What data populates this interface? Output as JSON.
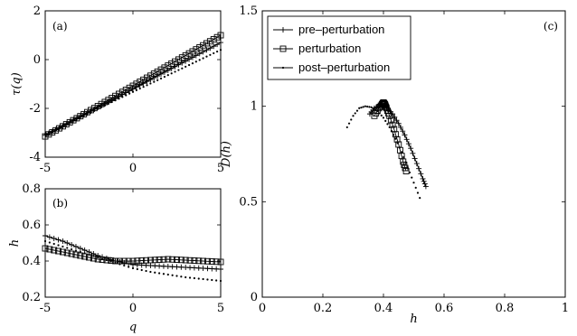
{
  "chart_data": [
    {
      "id": "a",
      "type": "line",
      "panel_label": "(a)",
      "xlim": [
        -5,
        5
      ],
      "ylim": [
        -4,
        2
      ],
      "xticks": [
        -5,
        0,
        5
      ],
      "yticks": [
        -4,
        -2,
        0,
        2
      ],
      "ylabel": "τ(q)",
      "grid": false,
      "series": [
        {
          "style": "plus",
          "x": [
            -5,
            5
          ],
          "y": [
            -3.1,
            0.7
          ]
        },
        {
          "style": "square",
          "x": [
            -5,
            5
          ],
          "y": [
            -3.15,
            1.0
          ]
        },
        {
          "style": "dot",
          "x": [
            -5,
            5
          ],
          "y": [
            -3.05,
            0.4
          ]
        }
      ]
    },
    {
      "id": "b",
      "type": "line",
      "panel_label": "(b)",
      "xlim": [
        -5,
        5
      ],
      "ylim": [
        0.2,
        0.8
      ],
      "xticks": [
        -5,
        0,
        5
      ],
      "yticks": [
        0.2,
        0.4,
        0.6,
        0.8
      ],
      "xlabel": "q",
      "ylabel": "h",
      "grid": false,
      "series": [
        {
          "style": "plus",
          "x": [
            -5,
            -4,
            -3,
            -2,
            -1,
            0,
            1,
            2,
            3,
            4,
            5
          ],
          "y": [
            0.54,
            0.51,
            0.47,
            0.43,
            0.4,
            0.38,
            0.375,
            0.37,
            0.365,
            0.36,
            0.355
          ]
        },
        {
          "style": "square",
          "x": [
            -5,
            -4,
            -3,
            -2,
            -1,
            0,
            1,
            2,
            3,
            4,
            5
          ],
          "y": [
            0.47,
            0.45,
            0.43,
            0.41,
            0.4,
            0.4,
            0.405,
            0.41,
            0.405,
            0.4,
            0.395
          ]
        },
        {
          "style": "dot",
          "x": [
            -5,
            -4,
            -3,
            -2,
            -1,
            0,
            1,
            2,
            3,
            4,
            5
          ],
          "y": [
            0.51,
            0.48,
            0.45,
            0.42,
            0.39,
            0.36,
            0.34,
            0.325,
            0.31,
            0.3,
            0.29
          ]
        }
      ]
    },
    {
      "id": "c",
      "type": "line",
      "panel_label": "(c)",
      "xlim": [
        0,
        1
      ],
      "ylim": [
        0,
        1.5
      ],
      "xticks": [
        0,
        0.2,
        0.4,
        0.6,
        0.8,
        1
      ],
      "yticks": [
        0,
        0.5,
        1,
        1.5
      ],
      "xtick_labels": [
        "0",
        "0.2",
        "0.4",
        "0.6",
        "0.8",
        "1"
      ],
      "ytick_labels": [
        "0",
        "0.5",
        "1",
        "1.5"
      ],
      "xlabel": "h",
      "ylabel": "D(h)",
      "grid": false,
      "legend": {
        "placement": "top-left",
        "entries": [
          {
            "label": "pre–perturbation",
            "style": "plus"
          },
          {
            "label": "perturbation",
            "style": "square"
          },
          {
            "label": "post–perturbation",
            "style": "dot"
          }
        ]
      },
      "series": [
        {
          "style": "plus",
          "x": [
            0.355,
            0.37,
            0.39,
            0.41,
            0.43,
            0.45,
            0.47,
            0.49,
            0.51,
            0.53,
            0.54
          ],
          "y": [
            0.96,
            0.99,
            1.01,
            0.995,
            0.96,
            0.91,
            0.85,
            0.78,
            0.7,
            0.62,
            0.58
          ]
        },
        {
          "style": "square",
          "x": [
            0.37,
            0.385,
            0.395,
            0.4,
            0.405,
            0.41,
            0.42,
            0.435,
            0.45,
            0.465,
            0.475
          ],
          "y": [
            0.95,
            0.99,
            1.01,
            1.02,
            1.01,
            0.99,
            0.95,
            0.88,
            0.8,
            0.71,
            0.66
          ]
        },
        {
          "style": "dot",
          "x": [
            0.28,
            0.3,
            0.32,
            0.34,
            0.36,
            0.38,
            0.4,
            0.42,
            0.44,
            0.46,
            0.48,
            0.5,
            0.52
          ],
          "y": [
            0.89,
            0.95,
            0.99,
            1.0,
            0.995,
            0.975,
            0.94,
            0.89,
            0.83,
            0.76,
            0.68,
            0.6,
            0.52
          ]
        }
      ]
    }
  ]
}
